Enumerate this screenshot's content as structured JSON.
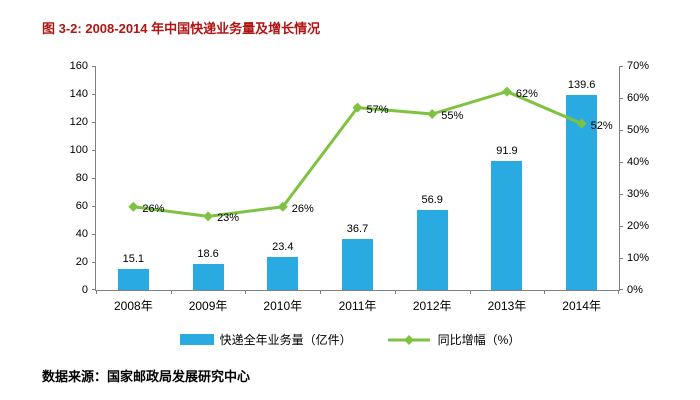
{
  "page": {
    "footer": "数据来源：国家邮政局发展研究中心"
  },
  "colors": {
    "title": "#B01513",
    "text": "#000000",
    "axis": "#808080",
    "bar": "#29ABE2",
    "line": "#7FC241"
  },
  "chart_data": {
    "type": "bar+line",
    "title": "图 3-2: 2008-2014 年中国快递业务量及增长情况",
    "categories": [
      "2008年",
      "2009年",
      "2010年",
      "2011年",
      "2012年",
      "2013年",
      "2014年"
    ],
    "series": [
      {
        "name": "快递全年业务量（亿件）",
        "type": "bar",
        "axis": "left",
        "values": [
          15.1,
          18.6,
          23.4,
          36.7,
          56.9,
          91.9,
          139.6
        ],
        "labels": [
          "15.1",
          "18.6",
          "23.4",
          "36.7",
          "56.9",
          "91.9",
          "139.6"
        ]
      },
      {
        "name": "同比增幅（%）",
        "type": "line",
        "axis": "right",
        "values": [
          26,
          23,
          26,
          57,
          55,
          62,
          52
        ],
        "labels": [
          "26%",
          "23%",
          "26%",
          "57%",
          "55%",
          "62%",
          "52%"
        ]
      }
    ],
    "left_axis": {
      "min": 0,
      "max": 160,
      "step": 20,
      "ticks": [
        "0",
        "20",
        "40",
        "60",
        "80",
        "100",
        "120",
        "140",
        "160"
      ]
    },
    "right_axis": {
      "min": 0,
      "max": 70,
      "step": 10,
      "ticks": [
        "0%",
        "10%",
        "20%",
        "30%",
        "40%",
        "50%",
        "60%",
        "70%"
      ]
    },
    "grid": false,
    "legend_position": "bottom"
  }
}
